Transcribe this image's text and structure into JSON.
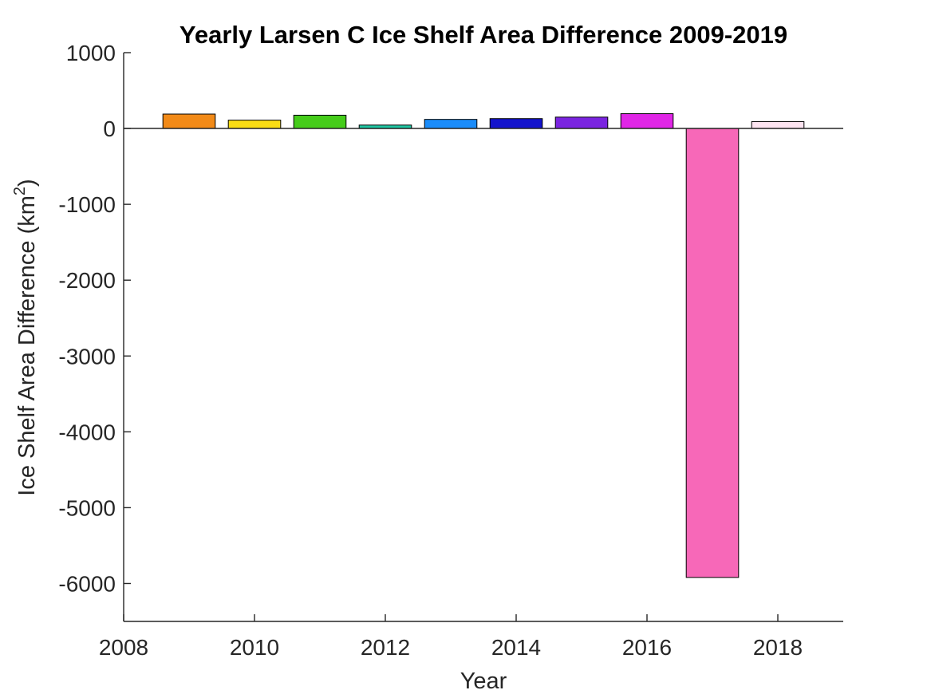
{
  "chart_data": {
    "type": "bar",
    "title": "Yearly Larsen C Ice Shelf Area Difference 2009-2019",
    "xlabel": "Year",
    "ylabel_main": "Ice Shelf Area Difference (km",
    "ylabel_sup": "2",
    "ylabel_close": ")",
    "xlim": [
      2008,
      2019
    ],
    "ylim": [
      -6500,
      1000
    ],
    "xticks": [
      "2008",
      "2010",
      "2012",
      "2014",
      "2016",
      "2018"
    ],
    "yticks": [
      "1000",
      "0",
      "-1000",
      "-2000",
      "-3000",
      "-4000",
      "-5000",
      "-6000"
    ],
    "grid": false,
    "bars": [
      {
        "year": 2009,
        "value": 190,
        "color": "#F28A17"
      },
      {
        "year": 2010,
        "value": 110,
        "color": "#FADD14"
      },
      {
        "year": 2011,
        "value": 175,
        "color": "#45CC1A"
      },
      {
        "year": 2012,
        "value": 45,
        "color": "#1FC7A3"
      },
      {
        "year": 2013,
        "value": 120,
        "color": "#1A8CFA"
      },
      {
        "year": 2014,
        "value": 130,
        "color": "#1414CC"
      },
      {
        "year": 2015,
        "value": 150,
        "color": "#7A24E0"
      },
      {
        "year": 2016,
        "value": 195,
        "color": "#E026E6"
      },
      {
        "year": 2017,
        "value": -5920,
        "color": "#F768B8"
      },
      {
        "year": 2018,
        "value": 90,
        "color": "#FDE4F1"
      }
    ]
  }
}
